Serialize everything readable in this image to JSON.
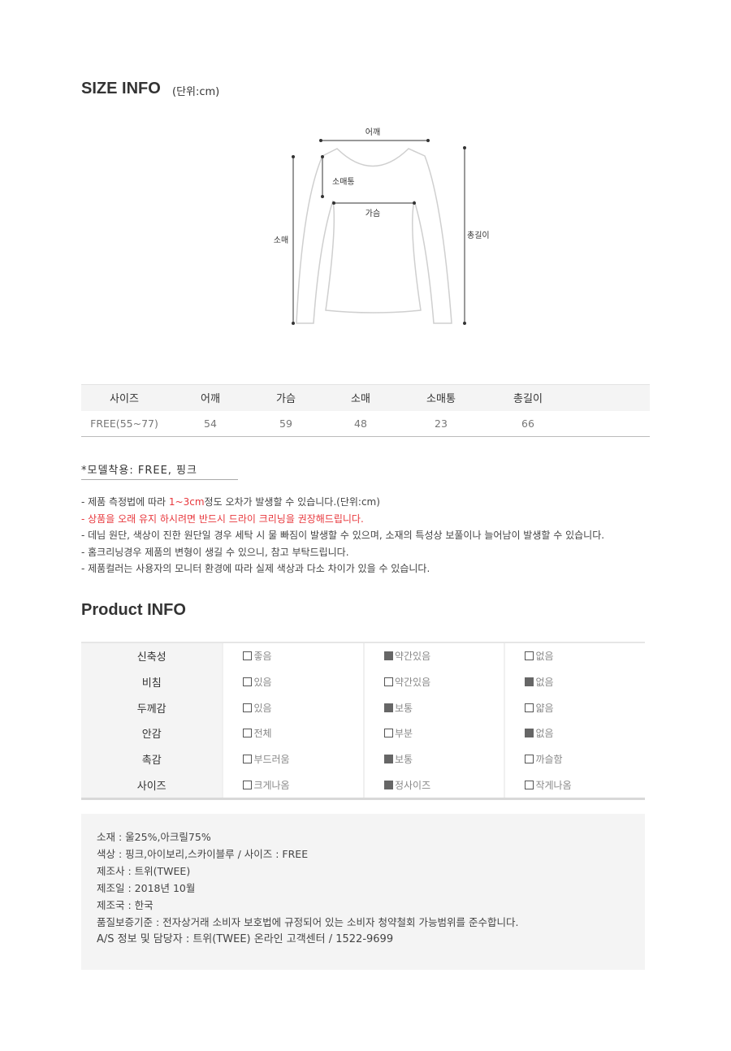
{
  "size_info": {
    "title": "SIZE INFO",
    "unit": "(단위:cm)",
    "diagram_labels": {
      "shoulder": "어깨",
      "sleeve_width": "소매통",
      "chest": "가슴",
      "sleeve": "소매",
      "total_length": "총길이"
    },
    "table": {
      "headers": [
        "사이즈",
        "어깨",
        "가슴",
        "소매",
        "소매통",
        "총길이"
      ],
      "rows": [
        [
          "FREE(55~77)",
          "54",
          "59",
          "48",
          "23",
          "66"
        ]
      ]
    }
  },
  "model": "*모델착용: FREE, 핑크",
  "notes": [
    {
      "pre": "- 제품 측정법에 따라 ",
      "highlight": "1~3cm",
      "post": "정도 오차가 발생할 수 있습니다.(단위:cm)"
    },
    {
      "red": "- 상품을 오래 유지 하시려면 반드시 드라이 크리닝을 권장해드립니다."
    },
    {
      "pre": "- 데님 원단, 색상이 진한 원단일 경우 세탁 시 물 빠짐이 발생할 수 있으며, 소재의 특성상 보풀이나 늘어남이 발생할 수 있습니다."
    },
    {
      "pre": "- 홈크리닝경우 제품의 변형이 생길 수 있으니, 참고 부탁드립니다."
    },
    {
      "pre": "- 제품컬러는 사용자의 모니터 환경에 따라 실제 색상과 다소 차이가 있을 수 있습니다."
    }
  ],
  "product_info": {
    "title": "Product INFO",
    "rows": [
      {
        "label": "신축성",
        "options": [
          {
            "text": "좋음",
            "checked": false
          },
          {
            "text": "약간있음",
            "checked": true
          },
          {
            "text": "없음",
            "checked": false
          }
        ]
      },
      {
        "label": "비침",
        "options": [
          {
            "text": "있음",
            "checked": false
          },
          {
            "text": "약간있음",
            "checked": false
          },
          {
            "text": "없음",
            "checked": true
          }
        ]
      },
      {
        "label": "두께감",
        "options": [
          {
            "text": "있음",
            "checked": false
          },
          {
            "text": "보통",
            "checked": true
          },
          {
            "text": "얇음",
            "checked": false
          }
        ]
      },
      {
        "label": "안감",
        "options": [
          {
            "text": "전체",
            "checked": false
          },
          {
            "text": "부분",
            "checked": false
          },
          {
            "text": "없음",
            "checked": true
          }
        ]
      },
      {
        "label": "촉감",
        "options": [
          {
            "text": "부드러움",
            "checked": false
          },
          {
            "text": "보통",
            "checked": true
          },
          {
            "text": "까슬함",
            "checked": false
          }
        ]
      },
      {
        "label": "사이즈",
        "options": [
          {
            "text": "크게나옴",
            "checked": false
          },
          {
            "text": "정사이즈",
            "checked": true
          },
          {
            "text": "작게나옴",
            "checked": false
          }
        ]
      }
    ]
  },
  "details": [
    "소재 : 울25%,아크릴75%",
    "색상 : 핑크,아이보리,스카이블루 / 사이즈 : FREE",
    "제조사 : 트위(TWEE)",
    "제조일 : 2018년 10월",
    "제조국 : 한국",
    "품질보증기준 : 전자상거래 소비자 보호법에 규정되어 있는 소비자 청약철회 가능범위를 준수합니다.",
    "A/S 정보 및 담당자 : 트위(TWEE) 온라인 고객센터 / 1522-9699"
  ],
  "colors": {
    "accent_red": "#e8383d",
    "panel_bg": "#f4f4f4",
    "checked_box": "#666666"
  }
}
